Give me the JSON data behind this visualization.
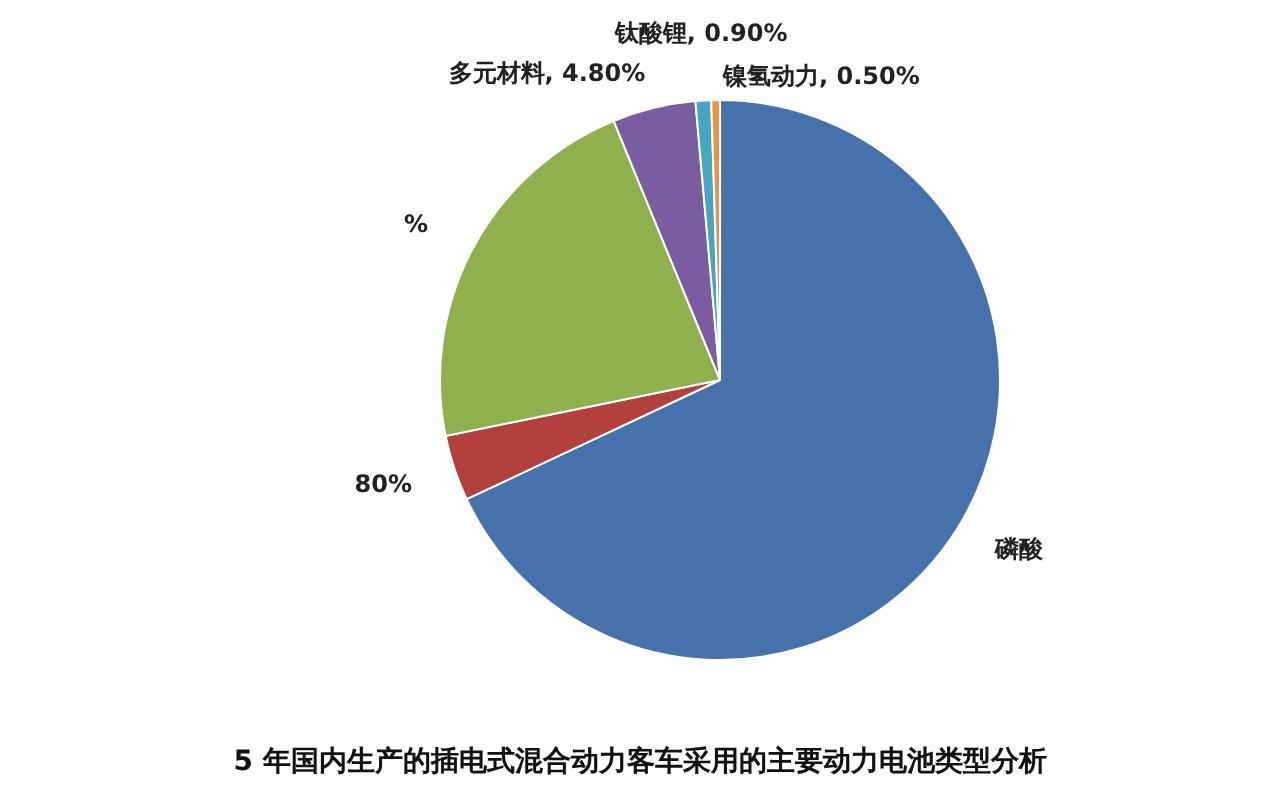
{
  "chart_data": {
    "type": "pie",
    "title": "5 年国内生产的插电式混合动力客车采用的主要动力电池类型分析",
    "categories": [
      "磷酸",
      null,
      null,
      "多元材料",
      "钛酸锂",
      "镍氢动力"
    ],
    "values": [
      68,
      3.8,
      22,
      4.8,
      0.9,
      0.5
    ],
    "colors": [
      "#4672ab",
      "#b2403d",
      "#8fb04c",
      "#7a5ca0",
      "#45a5c2",
      "#f0923a"
    ],
    "value_labels": [
      null,
      null,
      null,
      "4.80%",
      "0.90%",
      "0.50%"
    ],
    "annotations": [
      "%",
      "80%"
    ]
  }
}
